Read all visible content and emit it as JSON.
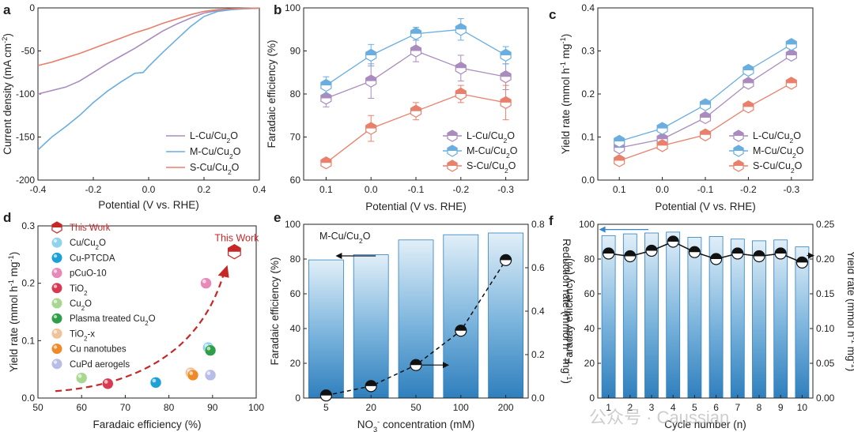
{
  "panels": {
    "a": "a",
    "b": "b",
    "c": "c",
    "d": "d",
    "e": "e",
    "f": "f"
  },
  "watermark": "公众号 · Caussian",
  "colors": {
    "L": "#a98bbd",
    "M": "#6aaee0",
    "S": "#e8806c",
    "axis": "#222222"
  },
  "chart_data": [
    {
      "id": "a",
      "type": "line",
      "title": "",
      "xlabel": "Potential (V vs. RHE)",
      "ylabel": "Current density (mA cm⁻²)",
      "xlim": [
        -0.4,
        0.4
      ],
      "ylim": [
        -200,
        0
      ],
      "xticks": [
        -0.4,
        -0.2,
        0.0,
        0.2,
        0.4
      ],
      "xtick_labels": [
        "-0.4",
        "-0.2",
        "0.0",
        "0.2",
        "0.4"
      ],
      "yticks": [
        -200,
        -150,
        -100,
        -50,
        0
      ],
      "legend_position": "bottom-right",
      "series": [
        {
          "name": "L-Cu/Cu₂O",
          "color": "#a98bbd",
          "x": [
            -0.4,
            -0.35,
            -0.3,
            -0.25,
            -0.2,
            -0.15,
            -0.1,
            -0.05,
            0.0,
            0.05,
            0.1,
            0.15,
            0.2,
            0.25,
            0.3,
            0.35,
            0.4
          ],
          "y": [
            -100,
            -96,
            -92,
            -85,
            -75,
            -65,
            -56,
            -47,
            -37,
            -27,
            -19,
            -12,
            -6,
            -3,
            -1.5,
            -0.8,
            -0.3
          ]
        },
        {
          "name": "M-Cu/Cu₂O",
          "color": "#6aaee0",
          "x": [
            -0.4,
            -0.35,
            -0.3,
            -0.25,
            -0.2,
            -0.15,
            -0.1,
            -0.05,
            -0.02,
            0.0,
            0.05,
            0.1,
            0.15,
            0.2,
            0.25,
            0.3,
            0.35,
            0.4
          ],
          "y": [
            -165,
            -150,
            -138,
            -125,
            -110,
            -97,
            -86,
            -76,
            -75,
            -68,
            -52,
            -37,
            -22,
            -10,
            -4,
            -2,
            -1,
            -0.5
          ]
        },
        {
          "name": "S-Cu/Cu₂O",
          "color": "#e8806c",
          "x": [
            -0.4,
            -0.35,
            -0.3,
            -0.25,
            -0.2,
            -0.15,
            -0.1,
            -0.05,
            0.0,
            0.05,
            0.1,
            0.15,
            0.2,
            0.25,
            0.3,
            0.35,
            0.4
          ],
          "y": [
            -67,
            -63,
            -58,
            -53,
            -47,
            -41,
            -35,
            -29,
            -24,
            -18,
            -13,
            -8,
            -4,
            -2,
            -1,
            -0.5,
            -0.2
          ]
        }
      ]
    },
    {
      "id": "b",
      "type": "line",
      "xlabel": "Potential (V vs. RHE)",
      "ylabel": "Faradaic efficiency (%)",
      "categories": [
        "0.1",
        "0.0",
        "-0.1",
        "-0.2",
        "-0.3"
      ],
      "ylim": [
        60,
        100
      ],
      "yticks": [
        60,
        70,
        80,
        90,
        100
      ],
      "legend_position": "bottom-right",
      "series": [
        {
          "name": "L-Cu/Cu₂O",
          "color": "#a98bbd",
          "values": [
            79,
            83,
            90,
            86,
            84
          ],
          "errors": [
            2,
            4,
            2.5,
            3,
            3
          ]
        },
        {
          "name": "M-Cu/Cu₂O",
          "color": "#6aaee0",
          "values": [
            82,
            89,
            94,
            95,
            89
          ],
          "errors": [
            2,
            2.5,
            1.5,
            2.5,
            2
          ]
        },
        {
          "name": "S-Cu/Cu₂O",
          "color": "#e8806c",
          "values": [
            64,
            72,
            76,
            80,
            78
          ],
          "errors": [
            1,
            3,
            2,
            2,
            4
          ]
        }
      ]
    },
    {
      "id": "c",
      "type": "line",
      "xlabel": "Potential (V vs. RHE)",
      "ylabel": "Yield rate (mmol h⁻¹ mg⁻¹)",
      "categories": [
        "0.1",
        "0.0",
        "-0.1",
        "-0.2",
        "-0.3"
      ],
      "ylim": [
        0,
        0.4
      ],
      "yticks": [
        0.0,
        0.1,
        0.2,
        0.3,
        0.4
      ],
      "legend_position": "bottom-right",
      "series": [
        {
          "name": "L-Cu/Cu₂O",
          "color": "#a98bbd",
          "values": [
            0.075,
            0.095,
            0.145,
            0.225,
            0.29
          ]
        },
        {
          "name": "M-Cu/Cu₂O",
          "color": "#6aaee0",
          "values": [
            0.09,
            0.12,
            0.175,
            0.255,
            0.315
          ]
        },
        {
          "name": "S-Cu/Cu₂O",
          "color": "#e8806c",
          "values": [
            0.045,
            0.08,
            0.105,
            0.17,
            0.225
          ]
        }
      ]
    },
    {
      "id": "d",
      "type": "scatter",
      "xlabel": "Faradaic efficiency (%)",
      "ylabel": "Yield rate (mmol h⁻¹ mg⁻¹)",
      "xlim": [
        50,
        100
      ],
      "ylim": [
        0,
        0.3
      ],
      "xticks": [
        50,
        60,
        70,
        80,
        90,
        100
      ],
      "yticks": [
        0.0,
        0.1,
        0.2,
        0.3
      ],
      "annotation": "This Work",
      "legend_position": "top-left",
      "points": [
        {
          "name": "This Work",
          "x": 95,
          "y": 0.255,
          "color": "#c62828",
          "marker": "hexagon"
        },
        {
          "name": "Cu/Cu₂O",
          "x": 89,
          "y": 0.088,
          "color": "#8fd3ef",
          "marker": "sphere"
        },
        {
          "name": "Cu-PTCDA",
          "x": 77,
          "y": 0.027,
          "color": "#1ba0d8",
          "marker": "sphere"
        },
        {
          "name": "pCuO-10",
          "x": 88.5,
          "y": 0.2,
          "color": "#e888b8",
          "marker": "sphere"
        },
        {
          "name": "TiO₂",
          "x": 66,
          "y": 0.025,
          "color": "#d83a52",
          "marker": "sphere"
        },
        {
          "name": "Cu₂O",
          "x": 60,
          "y": 0.035,
          "color": "#a8d890",
          "marker": "sphere"
        },
        {
          "name": "Plasma treated Cu₂O",
          "x": 89.5,
          "y": 0.083,
          "color": "#2e9e48",
          "marker": "sphere"
        },
        {
          "name": "TiO₂-x",
          "x": 85,
          "y": 0.044,
          "color": "#f0c498",
          "marker": "sphere"
        },
        {
          "name": "Cu nanotubes",
          "x": 85.5,
          "y": 0.04,
          "color": "#f08a28",
          "marker": "sphere"
        },
        {
          "name": "CuPd aerogels",
          "x": 89.5,
          "y": 0.04,
          "color": "#b8bde8",
          "marker": "sphere"
        }
      ]
    },
    {
      "id": "e",
      "type": "bar",
      "annotation": "M-Cu/Cu₂O",
      "xlabel": "NO₃⁻ concentration (mM)",
      "ylabel": "Faradaic efficiency (%)",
      "y2label": "Reduction rate (mmol h⁻¹ mg⁻¹)",
      "categories": [
        "5",
        "20",
        "50",
        "100",
        "200"
      ],
      "ylim": [
        0,
        100
      ],
      "yticks": [
        0,
        20,
        40,
        60,
        80,
        100
      ],
      "y2lim": [
        0,
        0.8
      ],
      "y2ticks": [
        0.0,
        0.2,
        0.4,
        0.6,
        0.8
      ],
      "series": [
        {
          "name": "Faradaic efficiency",
          "axis": "left",
          "values": [
            79.5,
            82.5,
            91,
            94,
            95
          ]
        },
        {
          "name": "Reduction rate",
          "axis": "right",
          "values": [
            0.012,
            0.055,
            0.152,
            0.31,
            0.635
          ]
        }
      ]
    },
    {
      "id": "f",
      "type": "bar",
      "xlabel": "Cycle number (n)",
      "ylabel": "Faraday efficiency (%)",
      "y2label": "Yield rate (mmol h⁻¹ mg⁻¹)",
      "categories": [
        "1",
        "2",
        "3",
        "4",
        "5",
        "6",
        "7",
        "8",
        "9",
        "10"
      ],
      "ylim": [
        0,
        100
      ],
      "yticks": [
        0,
        20,
        40,
        60,
        80,
        100
      ],
      "y2lim": [
        0,
        0.25
      ],
      "y2ticks": [
        0.0,
        0.05,
        0.1,
        0.15,
        0.2,
        0.25
      ],
      "series": [
        {
          "name": "Faraday efficiency",
          "axis": "left",
          "values": [
            93.5,
            94.5,
            95,
            95.5,
            92.5,
            93,
            91.5,
            90.5,
            91,
            87
          ]
        },
        {
          "name": "Yield rate",
          "axis": "right",
          "values": [
            0.208,
            0.204,
            0.212,
            0.225,
            0.21,
            0.2,
            0.208,
            0.204,
            0.208,
            0.195
          ]
        }
      ]
    }
  ]
}
